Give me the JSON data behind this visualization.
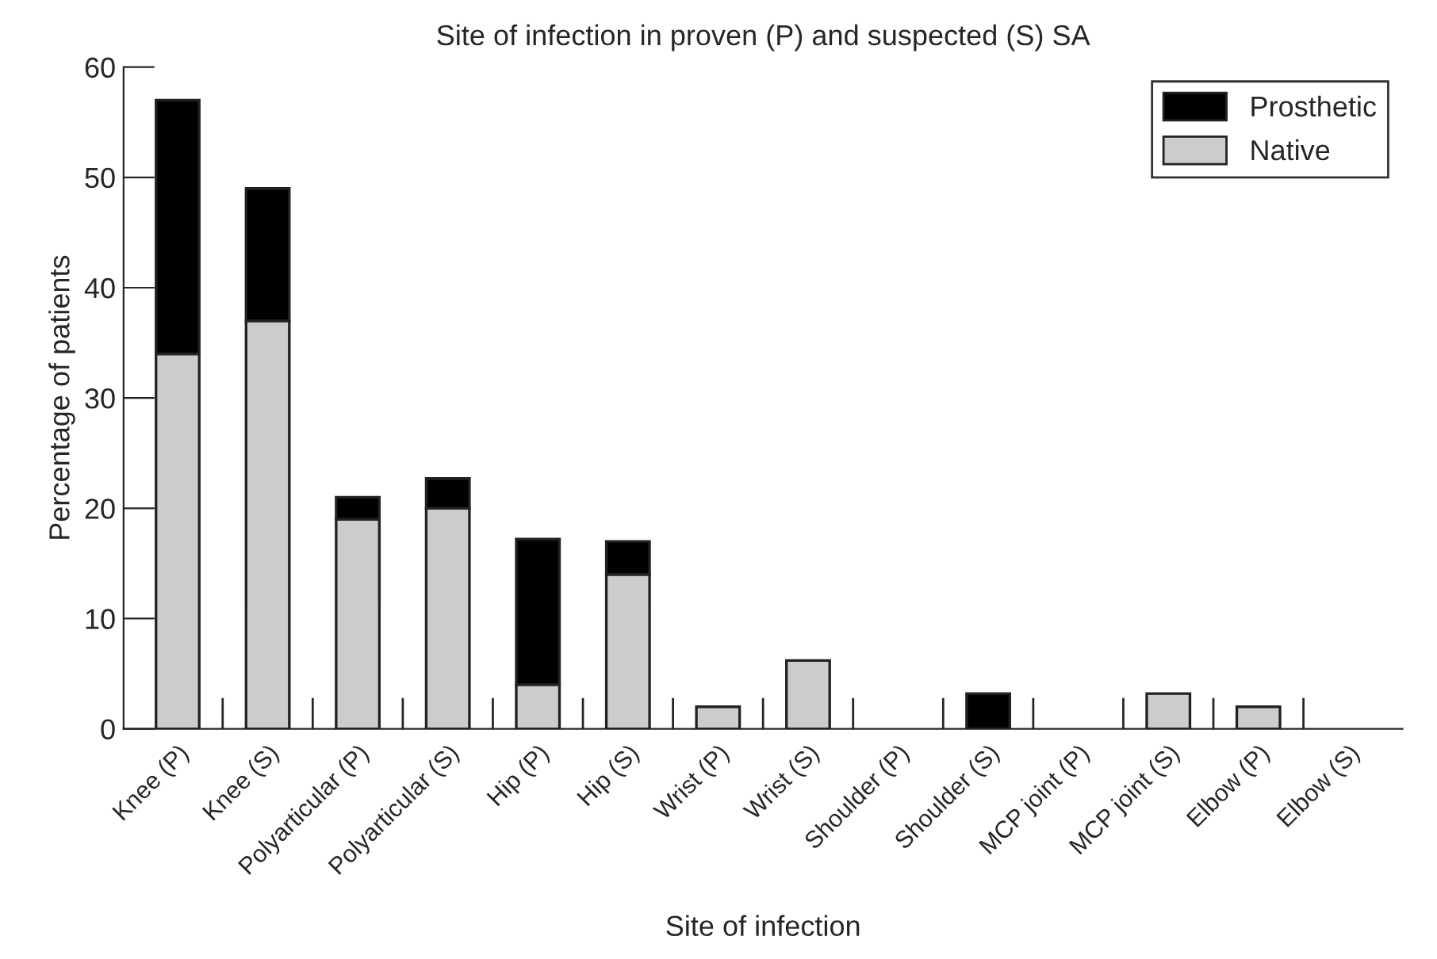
{
  "chart_data": {
    "type": "bar",
    "title": "Site of infection in proven (P) and suspected (S) SA",
    "xlabel": "Site of infection",
    "ylabel": "Percentage of patients",
    "categories": [
      "Knee (P)",
      "Knee (S)",
      "Polyarticular (P)",
      "Polyarticular (S)",
      "Hip (P)",
      "Hip (S)",
      "Wrist (P)",
      "Wrist (S)",
      "Shoulder (P)",
      "Shoulder (S)",
      "MCP joint (P)",
      "MCP joint (S)",
      "Elbow (P)",
      "Elbow (S)"
    ],
    "stacked": true,
    "series": [
      {
        "name": "Native",
        "color": "#cccccc",
        "values": [
          34,
          37,
          19,
          20,
          4,
          14,
          2,
          6.2,
          0,
          0,
          0,
          3.2,
          2,
          0
        ]
      },
      {
        "name": "Prosthetic",
        "color": "#000000",
        "values": [
          23,
          12,
          2,
          2.7,
          13.2,
          3,
          0,
          0,
          0,
          3.2,
          0,
          0,
          0,
          0
        ]
      }
    ],
    "ylim": [
      0,
      60
    ],
    "yticks": [
      0,
      10,
      20,
      30,
      40,
      50,
      60
    ],
    "grid": false,
    "legend": "top right"
  }
}
